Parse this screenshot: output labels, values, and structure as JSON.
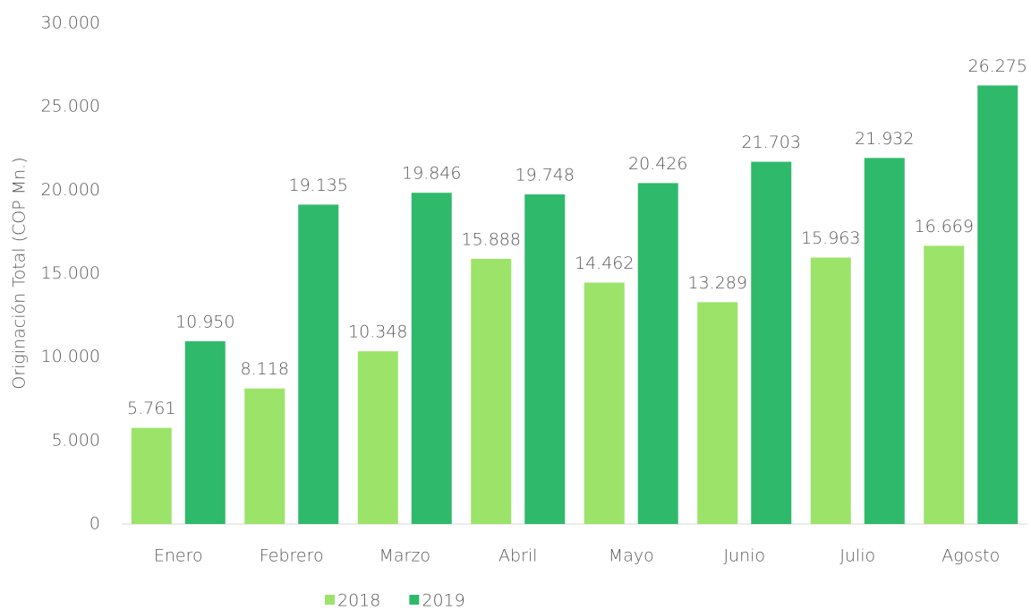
{
  "chart_data": {
    "type": "bar",
    "y_axis_label": "Originación Total (COP Mn.)",
    "categories": [
      "Enero",
      "Febrero",
      "Marzo",
      "Abril",
      "Mayo",
      "Junio",
      "Julio",
      "Agosto"
    ],
    "series": [
      {
        "name": "2018",
        "color": "#9be469",
        "values": [
          5761,
          8118,
          10348,
          15888,
          14462,
          13289,
          15963,
          16669
        ],
        "value_labels": [
          "5.761",
          "8.118",
          "10.348",
          "15.888",
          "14.462",
          "13.289",
          "15.963",
          "16.669"
        ]
      },
      {
        "name": "2019",
        "color": "#2fba6b",
        "values": [
          10950,
          19135,
          19846,
          19748,
          20426,
          21703,
          21932,
          26275
        ],
        "value_labels": [
          "10.950",
          "19.135",
          "19.846",
          "19.748",
          "20.426",
          "21.703",
          "21.932",
          "26.275"
        ]
      }
    ],
    "ylim": [
      0,
      30000
    ],
    "yticks": [
      {
        "value": 0,
        "label": "0"
      },
      {
        "value": 5000,
        "label": "5.000"
      },
      {
        "value": 10000,
        "label": "10.000"
      },
      {
        "value": 15000,
        "label": "15.000"
      },
      {
        "value": 20000,
        "label": "20.000"
      },
      {
        "value": 25000,
        "label": "25.000"
      },
      {
        "value": 30000,
        "label": "30.000"
      }
    ],
    "grid": false,
    "legend": "bottom"
  }
}
